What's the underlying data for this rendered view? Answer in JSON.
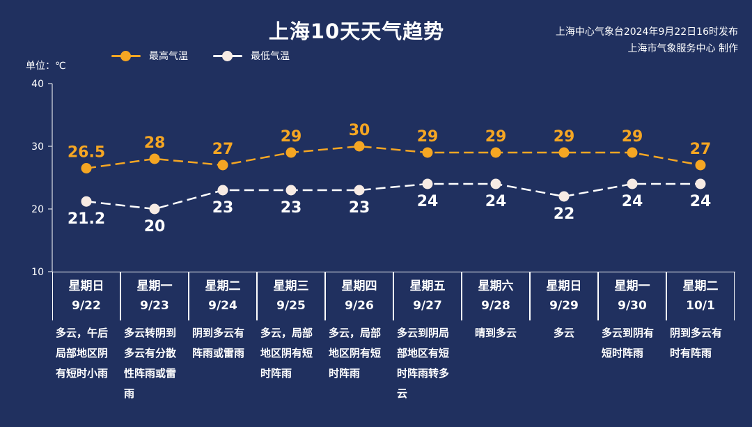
{
  "title": "上海10天天气趋势",
  "source": {
    "line1": "上海中心气象台2024年9月22日16时发布",
    "line2": "上海市气象服务中心 制作"
  },
  "colors": {
    "background": "#20305f",
    "high": "#f5a623",
    "low": "#ffffff"
  },
  "chart_data": {
    "type": "line",
    "title": "上海10天天气趋势",
    "ylabel": "单位：℃",
    "ylim": [
      10,
      40
    ],
    "yticks": [
      "10",
      "20",
      "30",
      "40"
    ],
    "categories": [
      "9/22",
      "9/23",
      "9/24",
      "9/25",
      "9/26",
      "9/27",
      "9/28",
      "9/29",
      "9/30",
      "10/1"
    ],
    "series": [
      {
        "name": "最高气温",
        "values": [
          26.5,
          28,
          27,
          29,
          30,
          29,
          29,
          29,
          29,
          27
        ],
        "labels": [
          "26.5",
          "28",
          "27",
          "29",
          "30",
          "29",
          "29",
          "29",
          "29",
          "27"
        ]
      },
      {
        "name": "最低气温",
        "values": [
          21.2,
          20,
          23,
          23,
          23,
          24,
          24,
          22,
          24,
          24
        ],
        "labels": [
          "21.2",
          "20",
          "23",
          "23",
          "23",
          "24",
          "24",
          "22",
          "24",
          "24"
        ]
      }
    ],
    "legend": "top-left",
    "grid": false
  },
  "days": [
    {
      "weekday": "星期日",
      "date": "9/22",
      "weather": "多云，午后局部地区阴有短时小雨"
    },
    {
      "weekday": "星期一",
      "date": "9/23",
      "weather": "多云转阴到多云有分散性阵雨或雷雨"
    },
    {
      "weekday": "星期二",
      "date": "9/24",
      "weather": "阴到多云有阵雨或雷雨"
    },
    {
      "weekday": "星期三",
      "date": "9/25",
      "weather": "多云，局部地区阴有短时阵雨"
    },
    {
      "weekday": "星期四",
      "date": "9/26",
      "weather": "多云，局部地区阴有短时阵雨"
    },
    {
      "weekday": "星期五",
      "date": "9/27",
      "weather": "多云到阴局部地区有短时阵雨转多云"
    },
    {
      "weekday": "星期六",
      "date": "9/28",
      "weather": "晴到多云"
    },
    {
      "weekday": "星期日",
      "date": "9/29",
      "weather": "多云"
    },
    {
      "weekday": "星期一",
      "date": "9/30",
      "weather": "多云到阴有短时阵雨"
    },
    {
      "weekday": "星期二",
      "date": "10/1",
      "weather": "阴到多云有时有阵雨"
    }
  ]
}
